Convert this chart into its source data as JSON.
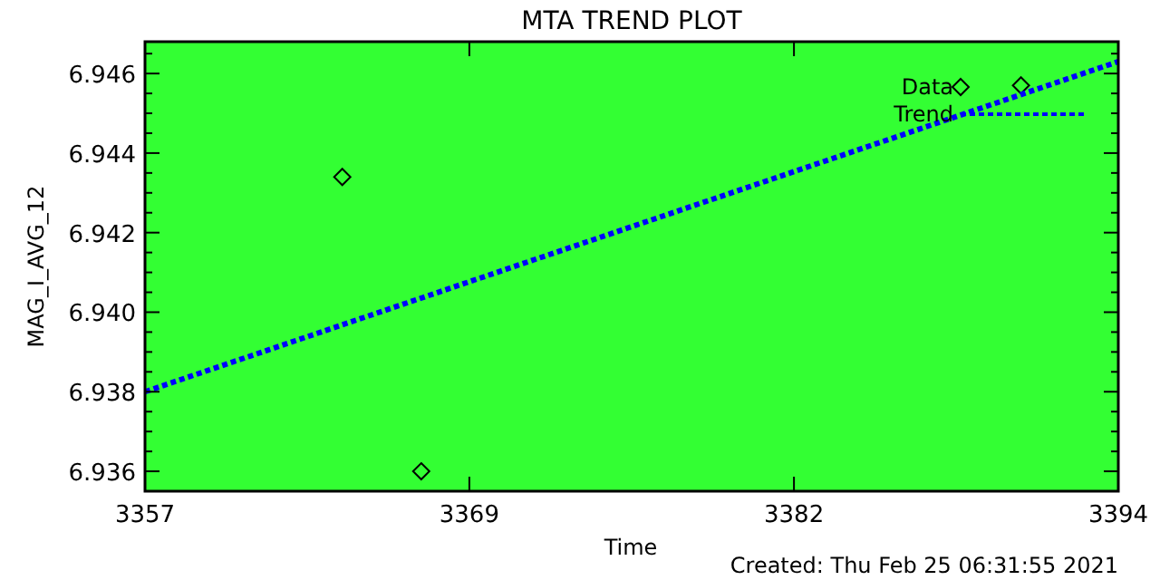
{
  "chart_data": {
    "type": "scatter",
    "title": "MTA TREND PLOT",
    "xlabel": "Time",
    "ylabel": "MAG_I_AVG_12",
    "annotations": [
      "Created: Thu Feb 25 06:31:55 2021"
    ],
    "xlim": [
      3357,
      3394
    ],
    "xticks": [
      3357,
      {
        "value": 3369.33,
        "label": "3369"
      },
      {
        "value": 3381.67,
        "label": "3382"
      },
      3394
    ],
    "ylim": [
      6.9355,
      6.9468
    ],
    "yticks": [
      {
        "value": 6.9355,
        "label": null
      },
      6.936,
      {
        "value": 6.9365,
        "label": null
      },
      {
        "value": 6.937,
        "label": null
      },
      {
        "value": 6.9375,
        "label": null
      },
      6.938,
      {
        "value": 6.9385,
        "label": null
      },
      {
        "value": 6.939,
        "label": null
      },
      {
        "value": 6.9395,
        "label": null
      },
      {
        "value": 6.94,
        "label": "6.940"
      },
      {
        "value": 6.9405,
        "label": null
      },
      {
        "value": 6.941,
        "label": null
      },
      {
        "value": 6.9415,
        "label": null
      },
      6.942,
      {
        "value": 6.9425,
        "label": null
      },
      {
        "value": 6.943,
        "label": null
      },
      {
        "value": 6.9435,
        "label": null
      },
      6.944,
      {
        "value": 6.9445,
        "label": null
      },
      {
        "value": 6.945,
        "label": null
      },
      {
        "value": 6.9455,
        "label": null
      },
      6.946,
      {
        "value": 6.9465,
        "label": null
      }
    ],
    "legend": "top right",
    "grid": false,
    "series": [
      {
        "name": "Data",
        "marker": "diamond",
        "color": "#000000",
        "x": [
          3364.5,
          3367.5,
          3390.3
        ],
        "values": [
          6.9434,
          6.936,
          6.9457
        ]
      },
      {
        "name": "Trend",
        "type": "line",
        "line_style": "dotted",
        "marker": "none",
        "color": "#0000ff",
        "x": [
          3357,
          3394
        ],
        "values": [
          6.938,
          6.9463
        ]
      }
    ]
  }
}
